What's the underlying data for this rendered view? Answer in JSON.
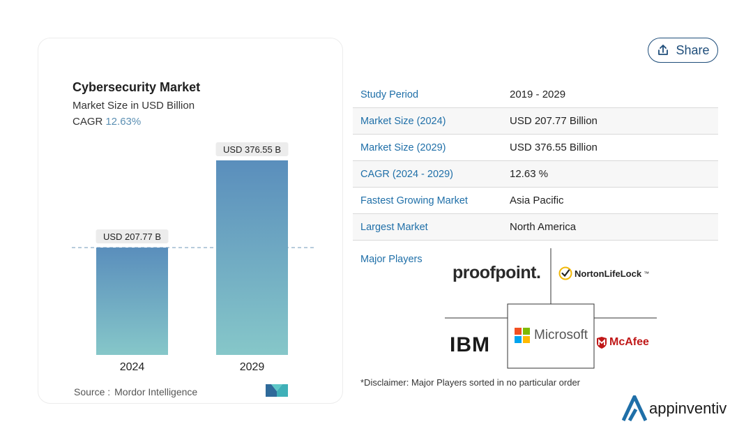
{
  "card": {
    "title": "Cybersecurity Market",
    "subtitle": "Market Size in USD Billion",
    "cagr_label": "CAGR",
    "cagr_value": "12.63%",
    "source_label": "Source :",
    "source_value": "Mordor Intelligence"
  },
  "chart_data": {
    "type": "bar",
    "title": "Cybersecurity Market",
    "subtitle": "Market Size in USD Billion",
    "categories": [
      "2024",
      "2029"
    ],
    "values": [
      207.77,
      376.55
    ],
    "data_labels": [
      "USD 207.77 B",
      "USD 376.55 B"
    ],
    "xlabel": "",
    "ylabel": "",
    "ylim": [
      0,
      376.55
    ],
    "grid": false,
    "reference_line": 207.77,
    "colors": {
      "bar_top": "#5a8ebc",
      "bar_bottom": "#86c7c9",
      "ref_line": "#7fa3c1"
    }
  },
  "share": {
    "label": "Share",
    "icon": "share-upload-icon"
  },
  "table": {
    "rows": [
      {
        "key": "Study Period",
        "value": "2019 - 2029"
      },
      {
        "key": "Market Size (2024)",
        "value": "USD 207.77 Billion"
      },
      {
        "key": "Market Size (2029)",
        "value": "USD 376.55 Billion"
      },
      {
        "key": "CAGR (2024 - 2029)",
        "value": "12.63 %"
      },
      {
        "key": "Fastest Growing Market",
        "value": "Asia Pacific"
      },
      {
        "key": "Largest Market",
        "value": "North America"
      }
    ]
  },
  "players": {
    "label": "Major Players",
    "proofpoint": "proofpoint.",
    "norton": "NortonLifeLock",
    "norton_tm": "™",
    "ibm": "IBM",
    "microsoft": "Microsoft",
    "mcafee": "McAfee"
  },
  "disclaimer": "*Disclaimer: Major Players sorted in no particular order",
  "brand": {
    "name": "appinventiv"
  },
  "colors": {
    "accent": "#1f6fa8",
    "share_border": "#1e4d7a"
  }
}
